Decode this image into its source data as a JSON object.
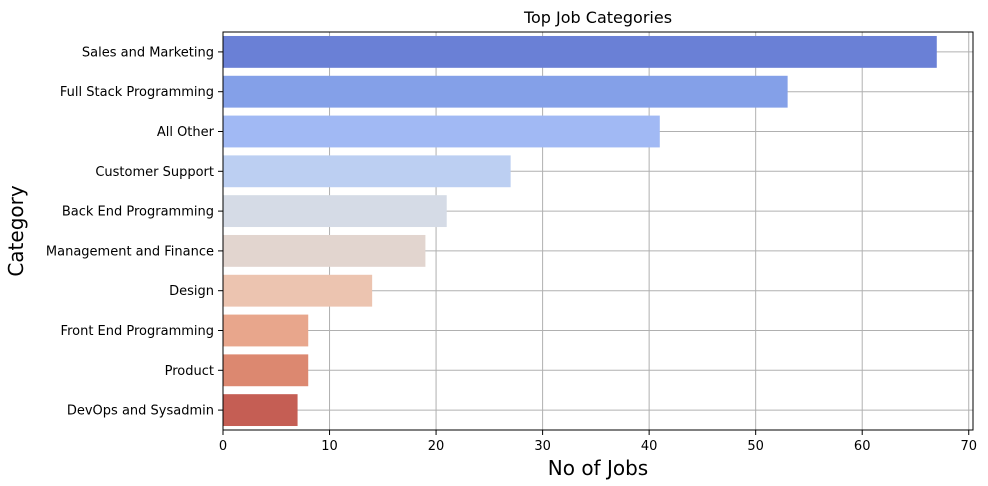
{
  "chart_data": {
    "type": "bar",
    "orientation": "horizontal",
    "title": "Top Job Categories",
    "xlabel": "No of Jobs",
    "ylabel": "Category",
    "categories": [
      "Sales and Marketing",
      "Full Stack Programming",
      "All Other",
      "Customer Support",
      "Back End Programming",
      "Management and Finance",
      "Design",
      "Front End Programming",
      "Product",
      "DevOps and Sysadmin"
    ],
    "values": [
      67,
      53,
      41,
      27,
      21,
      19,
      14,
      8,
      8,
      7
    ],
    "colors": [
      "#6a80d6",
      "#84a0e8",
      "#a1b9f4",
      "#bccff2",
      "#d5dbe6",
      "#e2d5cf",
      "#ecc4b0",
      "#e8a68c",
      "#dc8870",
      "#c55e54"
    ],
    "xlim": [
      0,
      70.4
    ],
    "xticks": [
      0,
      10,
      20,
      30,
      40,
      50,
      60,
      70
    ],
    "grid": true,
    "legend": "none"
  }
}
